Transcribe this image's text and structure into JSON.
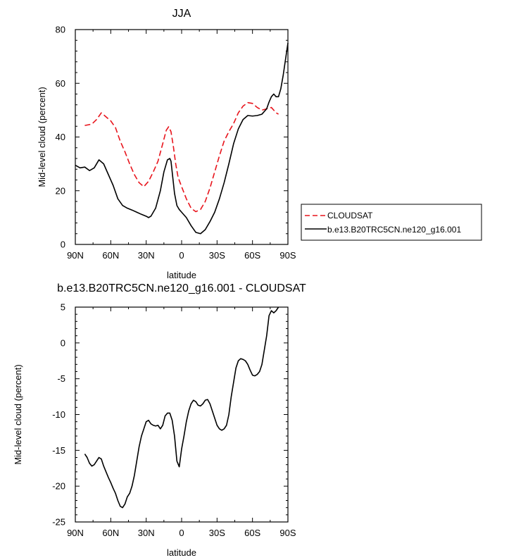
{
  "chart_data": [
    {
      "type": "line",
      "title": "JJA",
      "xlabel": "latitude",
      "ylabel": "Mid-level cloud (percent)",
      "xlim": [
        -90,
        90
      ],
      "ylim": [
        0,
        80
      ],
      "xticks": [
        -90,
        -60,
        -30,
        0,
        30,
        60,
        90
      ],
      "xtick_labels": [
        "90N",
        "60N",
        "30N",
        "0",
        "30S",
        "60S",
        "90S"
      ],
      "yticks": [
        0,
        20,
        40,
        60,
        80
      ],
      "ytick_labels": [
        "0",
        "20",
        "40",
        "60",
        "80"
      ],
      "legend": {
        "position": "right",
        "entries": [
          "CLOUDSAT",
          "b.e13.B20TRC5CN.ne120_g16.001"
        ]
      },
      "series": [
        {
          "name": "CLOUDSAT",
          "color": "#e8141c",
          "dash": "dashed",
          "x": [
            -82,
            -76,
            -72,
            -68,
            -64,
            -60,
            -56,
            -52,
            -48,
            -44,
            -40,
            -36,
            -32,
            -28,
            -24,
            -20,
            -16,
            -13,
            -11,
            -9,
            -7,
            -5,
            -3,
            0,
            4,
            8,
            12,
            16,
            20,
            24,
            28,
            32,
            36,
            40,
            44,
            48,
            52,
            56,
            60,
            64,
            68,
            72,
            76,
            80,
            82
          ],
          "y": [
            44.3,
            44.8,
            46.5,
            49.0,
            47.5,
            46.0,
            43.5,
            38.5,
            34.5,
            30.0,
            26.0,
            23.0,
            21.5,
            23.5,
            27.0,
            31.0,
            37.5,
            42.5,
            43.8,
            42.0,
            36.5,
            30.0,
            25.0,
            21.5,
            17.0,
            13.5,
            12.2,
            13.0,
            16.0,
            21.0,
            27.0,
            33.0,
            38.5,
            42.0,
            45.0,
            49.0,
            51.5,
            52.8,
            52.5,
            51.0,
            50.0,
            50.5,
            51.0,
            49.0,
            48.5
          ]
        },
        {
          "name": "b.e13.B20TRC5CN.ne120_g16.001",
          "color": "#000000",
          "dash": "solid",
          "x": [
            -90,
            -86,
            -82,
            -78,
            -74,
            -70,
            -66,
            -62,
            -58,
            -54,
            -50,
            -46,
            -42,
            -38,
            -34,
            -30,
            -28,
            -26,
            -22,
            -18,
            -15,
            -12,
            -10,
            -9,
            -8,
            -6,
            -4,
            -2,
            0,
            4,
            8,
            12,
            16,
            20,
            24,
            28,
            32,
            36,
            40,
            44,
            48,
            52,
            56,
            60,
            64,
            68,
            72,
            74,
            76,
            78,
            80,
            82,
            84,
            86,
            88,
            90
          ],
          "y": [
            29.5,
            28.5,
            28.8,
            27.5,
            28.5,
            31.5,
            30.0,
            26.0,
            22.0,
            17.0,
            14.5,
            13.5,
            12.8,
            12.0,
            11.2,
            10.5,
            10.0,
            10.5,
            13.5,
            20.0,
            27.0,
            31.5,
            32.0,
            31.0,
            27.0,
            19.0,
            14.5,
            13.0,
            12.0,
            10.0,
            7.0,
            4.5,
            4.0,
            5.5,
            8.5,
            12.0,
            17.0,
            23.0,
            30.0,
            37.5,
            43.0,
            46.5,
            48.0,
            47.8,
            48.0,
            48.5,
            50.5,
            53.0,
            55.0,
            56.0,
            55.0,
            55.0,
            58.0,
            63.0,
            69.0,
            75.0
          ]
        }
      ]
    },
    {
      "type": "line",
      "title": "b.e13.B20TRC5CN.ne120_g16.001 - CLOUDSAT",
      "xlabel": "latitude",
      "ylabel": "Mid-level cloud (percent)",
      "xlim": [
        -90,
        90
      ],
      "ylim": [
        -25,
        5
      ],
      "xticks": [
        -90,
        -60,
        -30,
        0,
        30,
        60,
        90
      ],
      "xtick_labels": [
        "90N",
        "60N",
        "30N",
        "0",
        "30S",
        "60S",
        "90S"
      ],
      "yticks": [
        -25,
        -20,
        -15,
        -10,
        -5,
        0,
        5
      ],
      "ytick_labels": [
        "-25",
        "-20",
        "-15",
        "-10",
        "-5",
        "0",
        "5"
      ],
      "series": [
        {
          "name": "b.e13.B20TRC5CN.ne120_g16.001 - CLOUDSAT",
          "color": "#000000",
          "dash": "solid",
          "x": [
            -82,
            -80,
            -78,
            -76,
            -74,
            -72,
            -70,
            -68,
            -66,
            -64,
            -62,
            -60,
            -58,
            -56,
            -54,
            -52,
            -50,
            -48,
            -46,
            -44,
            -42,
            -40,
            -38,
            -36,
            -34,
            -32,
            -30,
            -28,
            -26,
            -24,
            -22,
            -20,
            -18,
            -16,
            -14,
            -12,
            -10,
            -8,
            -6,
            -4,
            -2,
            0,
            2,
            4,
            6,
            8,
            10,
            12,
            14,
            16,
            18,
            20,
            22,
            24,
            26,
            28,
            30,
            32,
            34,
            36,
            38,
            40,
            42,
            44,
            46,
            48,
            50,
            52,
            54,
            56,
            58,
            60,
            62,
            64,
            66,
            68,
            70,
            72,
            74,
            76,
            78,
            80,
            82
          ],
          "y": [
            -15.5,
            -16.0,
            -16.8,
            -17.2,
            -17.0,
            -16.5,
            -16.0,
            -16.2,
            -17.2,
            -18.0,
            -18.8,
            -19.5,
            -20.3,
            -21.0,
            -22.0,
            -22.8,
            -23.0,
            -22.5,
            -21.5,
            -21.0,
            -20.0,
            -18.5,
            -16.5,
            -14.5,
            -13.0,
            -12.0,
            -11.0,
            -10.8,
            -11.3,
            -11.5,
            -11.6,
            -11.5,
            -12.0,
            -11.5,
            -10.2,
            -9.8,
            -9.8,
            -10.8,
            -13.0,
            -16.5,
            -17.3,
            -14.8,
            -13.0,
            -11.0,
            -9.5,
            -8.5,
            -8.0,
            -8.2,
            -8.7,
            -8.8,
            -8.5,
            -8.0,
            -7.9,
            -8.5,
            -9.5,
            -10.5,
            -11.5,
            -12.0,
            -12.2,
            -12.0,
            -11.5,
            -10.0,
            -7.5,
            -5.5,
            -3.5,
            -2.5,
            -2.2,
            -2.3,
            -2.5,
            -3.0,
            -3.8,
            -4.5,
            -4.6,
            -4.4,
            -4.0,
            -3.0,
            -1.0,
            1.0,
            3.8,
            4.5,
            4.2,
            4.5,
            5.0
          ]
        }
      ]
    }
  ]
}
